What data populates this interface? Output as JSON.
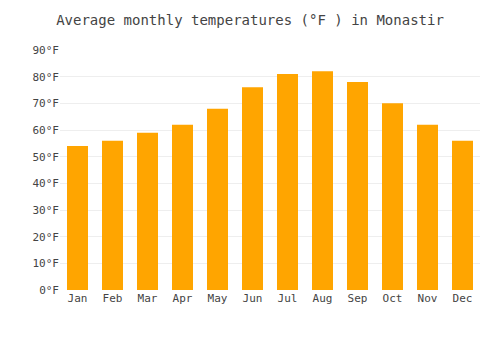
{
  "chart_data": {
    "type": "bar",
    "title": "Average monthly temperatures (°F ) in Monastir",
    "categories": [
      "Jan",
      "Feb",
      "Mar",
      "Apr",
      "May",
      "Jun",
      "Jul",
      "Aug",
      "Sep",
      "Oct",
      "Nov",
      "Dec"
    ],
    "values": [
      54,
      56,
      59,
      62,
      68,
      76,
      81,
      82,
      78,
      70,
      62,
      56
    ],
    "color": "#FFA500",
    "ylim": [
      0,
      90
    ],
    "yticks": [
      {
        "value": 0,
        "label": "0°F"
      },
      {
        "value": 10,
        "label": "10°F"
      },
      {
        "value": 20,
        "label": "20°F"
      },
      {
        "value": 30,
        "label": "30°F"
      },
      {
        "value": 40,
        "label": "40°F"
      },
      {
        "value": 50,
        "label": "50°F"
      },
      {
        "value": 60,
        "label": "60°F"
      },
      {
        "value": 70,
        "label": "70°F"
      },
      {
        "value": 80,
        "label": "80°F"
      },
      {
        "value": 90,
        "label": "90°F"
      }
    ],
    "grid": true
  }
}
